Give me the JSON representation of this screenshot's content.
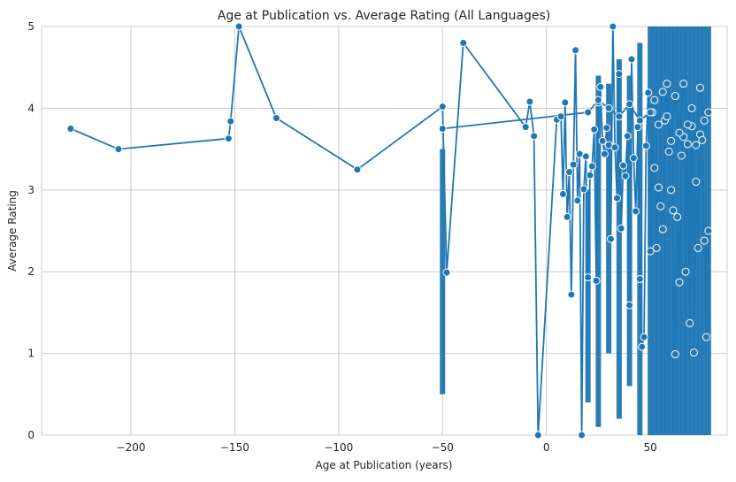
{
  "chart_data": {
    "type": "line",
    "title": "Age at Publication vs. Average Rating (All Languages)",
    "xlabel": "Age at Publication (years)",
    "ylabel": "Average Rating",
    "xlim": [
      -243,
      87
    ],
    "ylim": [
      0,
      5
    ],
    "xticks": [
      -200,
      -150,
      -100,
      -50,
      0,
      50
    ],
    "xtick_labels": [
      "−200",
      "−150",
      "−100",
      "−50",
      "0",
      "50"
    ],
    "yticks": [
      0,
      1,
      2,
      3,
      4,
      5
    ],
    "ytick_labels": [
      "0",
      "1",
      "2",
      "3",
      "4",
      "5"
    ],
    "grid": true,
    "marker": "circle",
    "series": [
      {
        "color": "#1f77b4",
        "x": [
          -229,
          -206,
          -153,
          -152,
          -148,
          -130,
          -91,
          -50,
          -48,
          -40,
          -10,
          -8,
          -6,
          -4,
          5,
          7,
          8,
          9,
          10,
          11,
          12,
          13,
          14,
          15,
          16,
          17,
          18,
          19,
          20,
          21,
          22,
          23,
          24,
          25,
          26,
          27,
          28,
          29,
          30,
          31,
          32,
          33,
          34,
          35,
          36,
          37,
          38,
          39,
          40,
          41,
          42,
          43,
          44,
          45,
          46,
          47,
          48,
          49,
          50,
          51,
          52,
          53,
          54,
          55,
          56,
          57,
          58,
          59,
          60,
          61,
          62,
          63,
          64,
          65,
          66,
          67,
          68,
          69,
          70,
          71,
          72,
          73,
          74,
          75,
          76,
          77,
          78
        ],
        "y": [
          3.75,
          3.5,
          3.63,
          3.84,
          5.0,
          3.88,
          3.25,
          4.02,
          1.99,
          4.8,
          3.77,
          4.08,
          3.66,
          0.0,
          3.86,
          3.9,
          2.95,
          4.07,
          2.67,
          3.22,
          1.72,
          3.31,
          4.71,
          2.87,
          3.44,
          0.0,
          3.01,
          3.41,
          1.93,
          3.18,
          3.29,
          3.74,
          1.89,
          4.07,
          4.26,
          3.6,
          3.44,
          3.76,
          3.55,
          2.4,
          5.0,
          3.52,
          2.9,
          4.42,
          2.53,
          3.3,
          3.17,
          3.66,
          1.59,
          4.6,
          3.39,
          2.74,
          3.77,
          1.91,
          1.08,
          1.2,
          3.54,
          4.19,
          2.25,
          3.95,
          3.27,
          2.29,
          3.03,
          2.8,
          2.52,
          3.85,
          4.3,
          3.47,
          3.0,
          2.75,
          0.99,
          2.67,
          1.87,
          3.42,
          3.65,
          2.0,
          3.56,
          1.37,
          3.78,
          1.01,
          3.1,
          2.29,
          3.68,
          3.61,
          2.38,
          1.2,
          2.5
        ],
        "ci_low": [
          3.75,
          3.5,
          3.63,
          3.84,
          5.0,
          3.88,
          3.25,
          4.02,
          1.99,
          4.8,
          3.77,
          4.08,
          3.66,
          0.0,
          3.86,
          3.9,
          2.95,
          4.07,
          2.67,
          3.22,
          1.72,
          3.31,
          4.71,
          2.87,
          3.44,
          0.0,
          3.01,
          3.41,
          1.93,
          3.18,
          3.29,
          3.74,
          1.89,
          4.07,
          4.26,
          3.6,
          3.44,
          3.76,
          3.55,
          2.4,
          5.0,
          3.52,
          2.9,
          4.42,
          2.53,
          3.3,
          3.17,
          3.66,
          1.59,
          4.6,
          3.39,
          2.74,
          3.77,
          1.91,
          1.08,
          1.2,
          3.54,
          4.19,
          2.25,
          3.95,
          3.27,
          2.29,
          3.03,
          2.8,
          2.52,
          3.85,
          4.3,
          3.47,
          3.0,
          2.75,
          0.99,
          2.67,
          1.87,
          3.42,
          3.65,
          2.0,
          3.56,
          1.37,
          3.78,
          1.01,
          3.1,
          2.29,
          3.68,
          3.61,
          2.38,
          1.2,
          2.5
        ],
        "ci_high": [
          3.75,
          3.5,
          3.63,
          3.84,
          5.0,
          3.88,
          3.25,
          4.02,
          1.99,
          4.8,
          3.77,
          4.08,
          3.66,
          0.0,
          3.86,
          3.9,
          2.95,
          4.07,
          2.67,
          3.22,
          1.72,
          3.31,
          4.71,
          2.87,
          3.44,
          0.0,
          3.01,
          3.41,
          1.93,
          3.18,
          3.29,
          3.74,
          1.89,
          4.07,
          4.26,
          3.6,
          3.44,
          3.76,
          3.55,
          2.4,
          5.0,
          3.52,
          2.9,
          4.42,
          2.53,
          3.3,
          3.17,
          3.66,
          1.59,
          4.6,
          3.39,
          2.74,
          3.77,
          1.91,
          1.08,
          1.2,
          3.54,
          4.19,
          2.25,
          3.95,
          3.27,
          2.29,
          3.03,
          2.8,
          2.52,
          3.85,
          4.3,
          3.47,
          3.0,
          2.75,
          0.99,
          2.67,
          1.87,
          3.42,
          3.65,
          2.0,
          3.56,
          1.37,
          3.78,
          1.01,
          3.1,
          2.29,
          3.68,
          3.61,
          2.38,
          1.2,
          2.5
        ]
      },
      {
        "color": "#1f77b4",
        "x": [
          -50,
          20,
          25,
          30,
          35,
          40,
          45,
          50,
          52,
          54,
          56,
          58,
          60,
          62,
          64,
          66,
          68,
          70,
          72,
          74,
          76,
          78
        ],
        "y": [
          3.75,
          3.95,
          4.1,
          4.0,
          3.9,
          4.05,
          3.85,
          3.95,
          4.1,
          3.8,
          4.2,
          3.9,
          3.6,
          4.15,
          3.7,
          4.3,
          3.8,
          4.0,
          3.55,
          4.25,
          3.85,
          3.95
        ],
        "ci_low": [
          0.5,
          0.4,
          0.1,
          1.0,
          0.2,
          0.6,
          0.0,
          0.0,
          0.0,
          0.0,
          0.0,
          0.0,
          0.0,
          0.0,
          0.0,
          0.0,
          0.0,
          0.0,
          0.0,
          0.0,
          0.0,
          0.0
        ],
        "ci_high": [
          3.5,
          3.0,
          4.4,
          4.3,
          4.6,
          4.4,
          4.8,
          5.0,
          5.0,
          5.0,
          5.0,
          5.0,
          5.0,
          5.0,
          5.0,
          5.0,
          5.0,
          5.0,
          5.0,
          5.0,
          5.0,
          5.0
        ]
      }
    ]
  }
}
